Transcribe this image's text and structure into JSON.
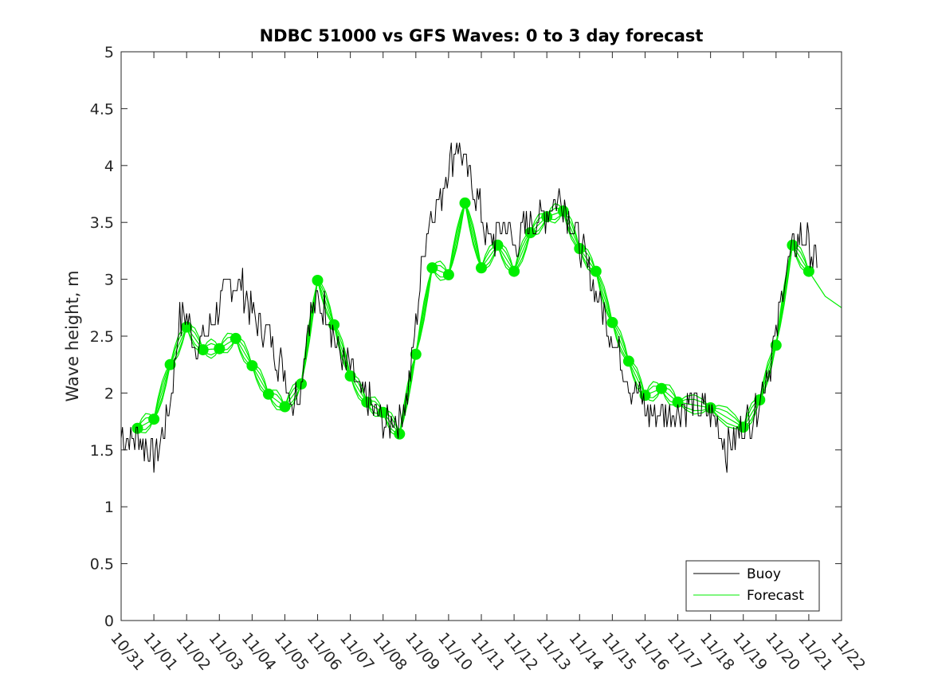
{
  "chart_data": {
    "type": "line",
    "title": "NDBC 51000 vs GFS Waves: 0 to 3 day forecast",
    "xlabel": "",
    "ylabel": "Wave height, m",
    "ylim": [
      0,
      5
    ],
    "yticks": [
      0,
      0.5,
      1,
      1.5,
      2,
      2.5,
      3,
      3.5,
      4,
      4.5,
      5
    ],
    "yticklabels": [
      "0",
      "0.5",
      "1",
      "1.5",
      "2",
      "2.5",
      "3",
      "3.5",
      "4",
      "4.5",
      "5"
    ],
    "xlim": [
      0,
      22
    ],
    "xticks": [
      0,
      1,
      2,
      3,
      4,
      5,
      6,
      7,
      8,
      9,
      10,
      11,
      12,
      13,
      14,
      15,
      16,
      17,
      18,
      19,
      20,
      21,
      22
    ],
    "xticklabels": [
      "10/31",
      "11/01",
      "11/02",
      "11/03",
      "11/04",
      "11/05",
      "11/06",
      "11/07",
      "11/08",
      "11/09",
      "11/10",
      "11/11",
      "11/12",
      "11/13",
      "11/14",
      "11/15",
      "11/16",
      "11/17",
      "11/18",
      "11/19",
      "11/20",
      "11/21",
      "11/22"
    ],
    "grid": false,
    "legend": {
      "position": "bottom-right",
      "entries": [
        "Buoy",
        "Forecast"
      ]
    },
    "colors": {
      "buoy": "#000000",
      "forecast": "#00ee00"
    },
    "series": [
      {
        "name": "Buoy",
        "color": "#000000",
        "x": [
          0,
          0.25,
          0.5,
          0.75,
          1,
          1.25,
          1.5,
          1.75,
          2,
          2.25,
          2.5,
          2.75,
          3,
          3.25,
          3.5,
          3.75,
          4,
          4.25,
          4.5,
          4.75,
          5,
          5.25,
          5.5,
          5.75,
          6,
          6.25,
          6.5,
          6.75,
          7,
          7.25,
          7.5,
          7.75,
          8,
          8.25,
          8.5,
          8.75,
          9,
          9.25,
          9.5,
          9.75,
          10,
          10.25,
          10.5,
          10.75,
          11,
          11.25,
          11.5,
          11.75,
          12,
          12.25,
          12.5,
          12.75,
          13,
          13.25,
          13.5,
          13.75,
          14,
          14.25,
          14.5,
          14.75,
          15,
          15.25,
          15.5,
          15.75,
          16,
          16.25,
          16.5,
          16.75,
          17,
          17.25,
          17.5,
          17.75,
          18,
          18.25,
          18.5,
          18.75,
          19,
          19.25,
          19.5,
          19.75,
          20,
          20.25,
          20.5,
          20.75,
          21,
          21.25
        ],
        "y": [
          1.65,
          1.6,
          1.6,
          1.55,
          1.45,
          1.6,
          1.9,
          2.6,
          2.7,
          2.4,
          2.5,
          2.6,
          2.8,
          2.9,
          3.0,
          2.9,
          2.7,
          2.6,
          2.55,
          2.3,
          2.2,
          1.9,
          2.1,
          2.7,
          2.8,
          2.75,
          2.5,
          2.3,
          2.2,
          2.0,
          1.95,
          1.85,
          1.7,
          1.75,
          1.8,
          2.0,
          2.6,
          3.3,
          3.6,
          3.7,
          4.0,
          4.2,
          4.0,
          3.8,
          3.6,
          3.3,
          3.4,
          3.5,
          3.3,
          3.4,
          3.5,
          3.5,
          3.6,
          3.7,
          3.7,
          3.5,
          3.3,
          3.1,
          2.9,
          2.7,
          2.5,
          2.3,
          2.1,
          2.0,
          1.85,
          1.8,
          1.85,
          1.8,
          1.85,
          1.9,
          1.9,
          1.85,
          1.85,
          1.7,
          1.5,
          1.6,
          1.7,
          1.8,
          1.95,
          2.2,
          2.5,
          3.0,
          3.3,
          3.4,
          3.3,
          3.1
        ]
      },
      {
        "name": "Forecast",
        "color": "#00ee00",
        "x": [
          0.5,
          1,
          1.5,
          2,
          2.5,
          3,
          3.5,
          4,
          4.5,
          5,
          5.5,
          6,
          6.5,
          7,
          7.5,
          8,
          8.5,
          9,
          9.5,
          10,
          10.5,
          11,
          11.5,
          12,
          12.5,
          13,
          13.5,
          14,
          14.5,
          15,
          15.5,
          16,
          16.5,
          17,
          18,
          19,
          19.5,
          20,
          20.5,
          21
        ],
        "y": [
          1.69,
          1.77,
          2.25,
          2.58,
          2.38,
          2.39,
          2.48,
          2.24,
          1.99,
          1.88,
          2.08,
          2.99,
          2.6,
          2.15,
          1.92,
          1.83,
          1.64,
          2.34,
          3.1,
          3.04,
          3.67,
          3.1,
          3.3,
          3.07,
          3.41,
          3.55,
          3.6,
          3.27,
          3.07,
          2.62,
          2.28,
          1.98,
          2.04,
          1.92,
          1.87,
          1.7,
          1.94,
          2.42,
          3.3,
          3.07
        ]
      }
    ]
  }
}
